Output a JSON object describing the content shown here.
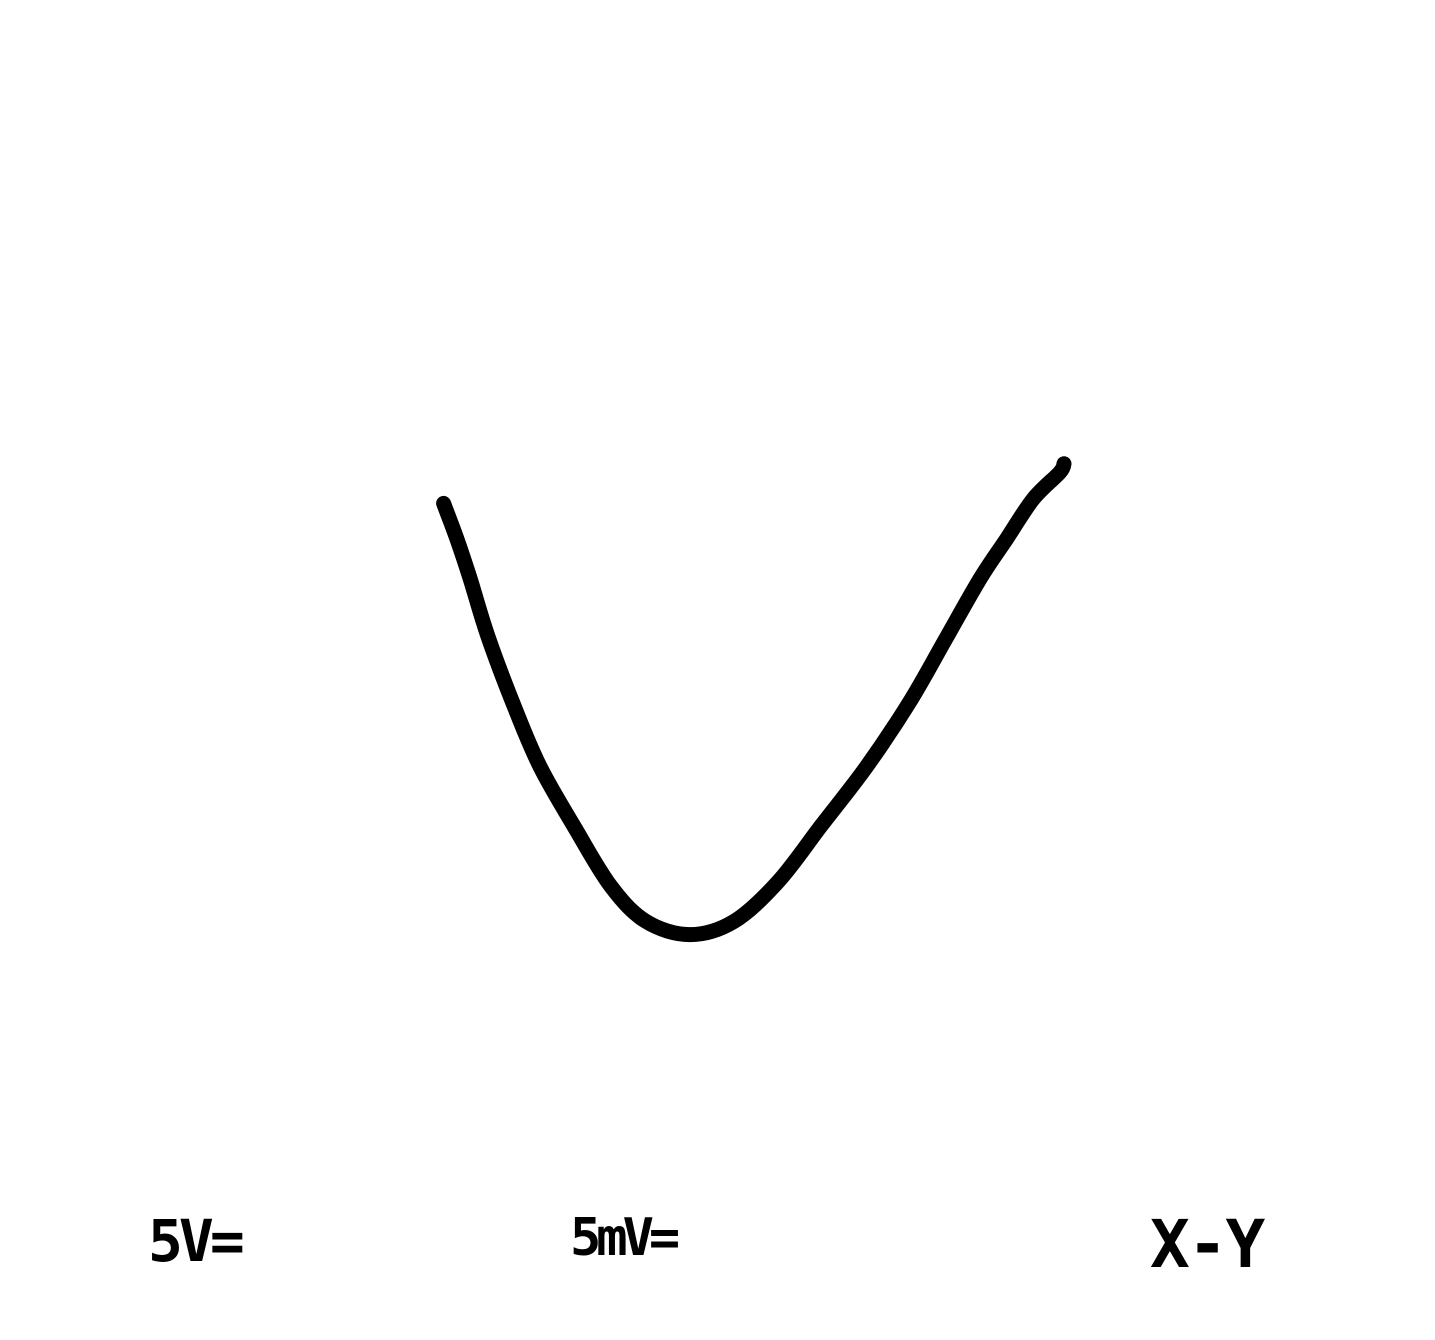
{
  "colors": {
    "trace": "#000000",
    "background": "#ffffff"
  },
  "readouts": {
    "x_scale": "5V=",
    "y_scale": "5mV=",
    "mode": "X-Y"
  },
  "chart_data": {
    "type": "line",
    "title": "",
    "xlabel": "",
    "ylabel": "",
    "grid": false,
    "legend": "none",
    "xlim": [
      -5,
      5
    ],
    "ylim": [
      -5,
      5
    ],
    "series": [
      {
        "x": [
          -2.8,
          -2.65,
          -2.5,
          -2.3,
          -2.0,
          -1.7,
          -1.3,
          -0.9,
          -0.5,
          0.0,
          0.5,
          1.0,
          1.5,
          2.0,
          2.5,
          2.9,
          3.3,
          3.6,
          3.9,
          4.2,
          4.25
        ],
        "y": [
          0.7,
          0.3,
          -0.15,
          -0.8,
          -1.6,
          -2.3,
          -3.0,
          -3.65,
          -4.05,
          -4.2,
          -4.05,
          -3.6,
          -2.95,
          -2.3,
          -1.55,
          -0.85,
          -0.15,
          0.3,
          0.75,
          1.05,
          1.15
        ]
      }
    ]
  }
}
